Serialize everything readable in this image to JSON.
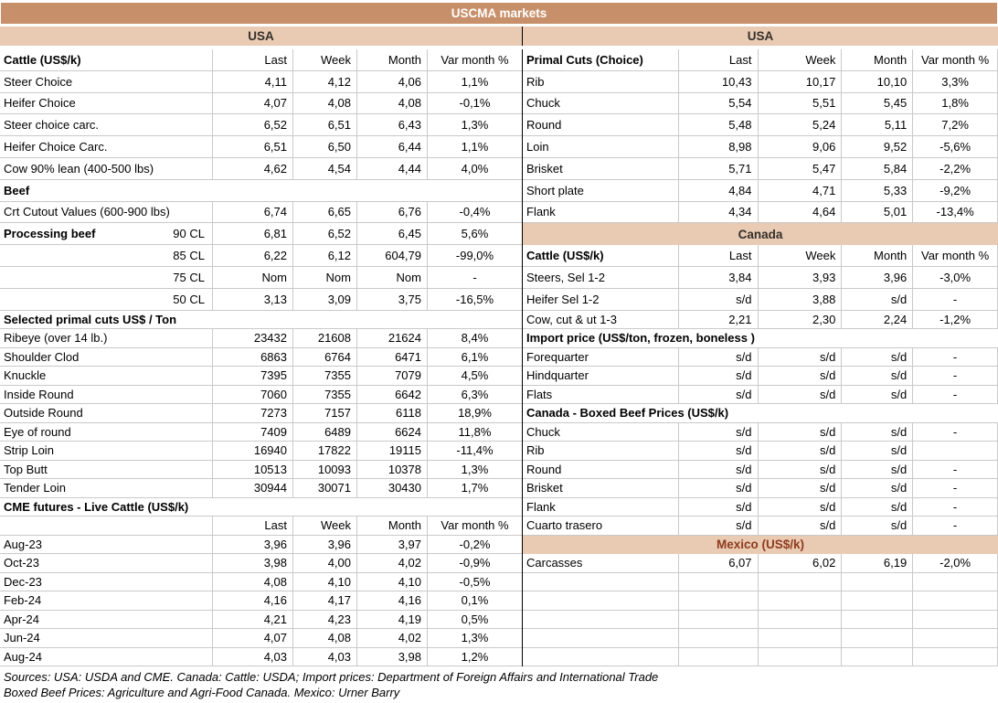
{
  "title": "USCMA markets",
  "left_region": "USA",
  "right_region": "USA",
  "column_headers": [
    "Last",
    "Week",
    "Month",
    "Var month %"
  ],
  "colors": {
    "title_bg": "#c8906a",
    "title_text": "#ffffff",
    "band_bg": "#e9cab3",
    "band_text": "#33302b",
    "mexico_band_text": "#8e3b1e",
    "grid": "#c9c9c9",
    "divider": "#000000",
    "text": "#000000"
  },
  "rows": [
    {
      "tall": true,
      "left": {
        "type": "header",
        "label": "Cattle (US$/k)"
      },
      "right": {
        "type": "header",
        "label": "Primal Cuts (Choice)"
      }
    },
    {
      "tall": true,
      "left": {
        "type": "data",
        "label": "Steer Choice",
        "values": [
          "4,11",
          "4,12",
          "4,06",
          "1,1%"
        ]
      },
      "right": {
        "type": "data",
        "label": "Rib",
        "values": [
          "10,43",
          "10,17",
          "10,10",
          "3,3%"
        ]
      }
    },
    {
      "tall": true,
      "left": {
        "type": "data",
        "label": "Heifer Choice",
        "values": [
          "4,07",
          "4,08",
          "4,08",
          "-0,1%"
        ]
      },
      "right": {
        "type": "data",
        "label": "Chuck",
        "values": [
          "5,54",
          "5,51",
          "5,45",
          "1,8%"
        ]
      }
    },
    {
      "tall": true,
      "left": {
        "type": "data",
        "label": "Steer choice carc.",
        "values": [
          "6,52",
          "6,51",
          "6,43",
          "1,3%"
        ]
      },
      "right": {
        "type": "data",
        "label": "Round",
        "values": [
          "5,48",
          "5,24",
          "5,11",
          "7,2%"
        ]
      }
    },
    {
      "tall": true,
      "left": {
        "type": "data",
        "label": "Heifer Choice Carc.",
        "values": [
          "6,51",
          "6,50",
          "6,44",
          "1,1%"
        ]
      },
      "right": {
        "type": "data",
        "label": "Loin",
        "values": [
          "8,98",
          "9,06",
          "9,52",
          "-5,6%"
        ]
      }
    },
    {
      "tall": true,
      "left": {
        "type": "data",
        "label": "Cow 90% lean (400-500 lbs)",
        "values": [
          "4,62",
          "4,54",
          "4,44",
          "4,0%"
        ]
      },
      "right": {
        "type": "data",
        "label": "Brisket",
        "values": [
          "5,71",
          "5,47",
          "5,84",
          "-2,2%"
        ]
      }
    },
    {
      "tall": true,
      "left": {
        "type": "section",
        "label": "Beef"
      },
      "right": {
        "type": "data",
        "label": "Short plate",
        "values": [
          "4,84",
          "4,71",
          "5,33",
          "-9,2%"
        ]
      }
    },
    {
      "tall": true,
      "left": {
        "type": "data",
        "label": "Crt Cutout Values (600-900 lbs)",
        "values": [
          "6,74",
          "6,65",
          "6,76",
          "-0,4%"
        ]
      },
      "right": {
        "type": "data",
        "label": "Flank",
        "values": [
          "4,34",
          "4,64",
          "5,01",
          "-13,4%"
        ]
      }
    },
    {
      "tall": true,
      "left": {
        "type": "data",
        "label": "Processing beef",
        "label_bold": true,
        "sub": "90 CL",
        "values": [
          "6,81",
          "6,52",
          "6,45",
          "5,6%"
        ]
      },
      "right": {
        "type": "band",
        "label": "Canada"
      }
    },
    {
      "tall": true,
      "left": {
        "type": "data",
        "label": "",
        "sub": "85 CL",
        "values": [
          "6,22",
          "6,12",
          "604,79",
          "-99,0%"
        ]
      },
      "right": {
        "type": "header",
        "label": "Cattle (US$/k)"
      }
    },
    {
      "tall": true,
      "left": {
        "type": "data",
        "label": "",
        "sub": "75 CL",
        "values": [
          "Nom",
          "Nom",
          "Nom",
          "-"
        ]
      },
      "right": {
        "type": "data",
        "label": "Steers, Sel 1-2",
        "values": [
          "3,84",
          "3,93",
          "3,96",
          "-3,0%"
        ]
      }
    },
    {
      "tall": true,
      "left": {
        "type": "data",
        "label": "",
        "sub": "50 CL",
        "values": [
          "3,13",
          "3,09",
          "3,75",
          "-16,5%"
        ]
      },
      "right": {
        "type": "data",
        "label": "Heifer Sel 1-2",
        "values": [
          "s/d",
          "3,88",
          "s/d",
          "-"
        ]
      }
    },
    {
      "tall": false,
      "left": {
        "type": "section",
        "label": "Selected primal cuts US$ / Ton"
      },
      "right": {
        "type": "data",
        "label": "Cow, cut & ut 1-3",
        "values": [
          "2,21",
          "2,30",
          "2,24",
          "-1,2%"
        ]
      }
    },
    {
      "tall": false,
      "left": {
        "type": "data",
        "label": "Ribeye (over 14 lb.)",
        "values": [
          "23432",
          "21608",
          "21624",
          "8,4%"
        ]
      },
      "right": {
        "type": "section",
        "label": "Import price (US$/ton, frozen, boneless )"
      }
    },
    {
      "tall": false,
      "left": {
        "type": "data",
        "label": "Shoulder Clod",
        "values": [
          "6863",
          "6764",
          "6471",
          "6,1%"
        ]
      },
      "right": {
        "type": "data",
        "label": "Forequarter",
        "values": [
          "s/d",
          "s/d",
          "s/d",
          "-"
        ]
      }
    },
    {
      "tall": false,
      "left": {
        "type": "data",
        "label": "Knuckle",
        "values": [
          "7395",
          "7355",
          "7079",
          "4,5%"
        ]
      },
      "right": {
        "type": "data",
        "label": "Hindquarter",
        "values": [
          "s/d",
          "s/d",
          "s/d",
          "-"
        ]
      }
    },
    {
      "tall": false,
      "left": {
        "type": "data",
        "label": "Inside Round",
        "values": [
          "7060",
          "7355",
          "6642",
          "6,3%"
        ]
      },
      "right": {
        "type": "data",
        "label": "Flats",
        "values": [
          "s/d",
          "s/d",
          "s/d",
          "-"
        ]
      }
    },
    {
      "tall": false,
      "left": {
        "type": "data",
        "label": "Outside Round",
        "values": [
          "7273",
          "7157",
          "6118",
          "18,9%"
        ]
      },
      "right": {
        "type": "section",
        "label": "Canada - Boxed Beef Prices (US$/k)"
      }
    },
    {
      "tall": false,
      "left": {
        "type": "data",
        "label": "Eye of round",
        "values": [
          "7409",
          "6489",
          "6624",
          "11,8%"
        ]
      },
      "right": {
        "type": "data",
        "label": "Chuck",
        "values": [
          "s/d",
          "s/d",
          "s/d",
          "-"
        ]
      }
    },
    {
      "tall": false,
      "left": {
        "type": "data",
        "label": "Strip Loin",
        "values": [
          "16940",
          "17822",
          "19115",
          "-11,4%"
        ]
      },
      "right": {
        "type": "data",
        "label": "Rib",
        "values": [
          "s/d",
          "s/d",
          "s/d",
          ""
        ]
      }
    },
    {
      "tall": false,
      "left": {
        "type": "data",
        "label": "Top Butt",
        "values": [
          "10513",
          "10093",
          "10378",
          "1,3%"
        ]
      },
      "right": {
        "type": "data",
        "label": "Round",
        "values": [
          "s/d",
          "s/d",
          "s/d",
          "-"
        ]
      }
    },
    {
      "tall": false,
      "left": {
        "type": "data",
        "label": "Tender Loin",
        "values": [
          "30944",
          "30071",
          "30430",
          "1,7%"
        ]
      },
      "right": {
        "type": "data",
        "label": "Brisket",
        "values": [
          "s/d",
          "s/d",
          "s/d",
          "-"
        ]
      }
    },
    {
      "tall": false,
      "left": {
        "type": "section",
        "label": "CME futures - Live Cattle (US$/k)"
      },
      "right": {
        "type": "data",
        "label": "Flank",
        "values": [
          "s/d",
          "s/d",
          "s/d",
          "-"
        ]
      }
    },
    {
      "tall": false,
      "left": {
        "type": "subheader",
        "label": ""
      },
      "right": {
        "type": "data",
        "label": "Cuarto trasero",
        "values": [
          "s/d",
          "s/d",
          "s/d",
          "-"
        ]
      }
    },
    {
      "tall": false,
      "left": {
        "type": "data",
        "label": "Aug-23",
        "values": [
          "3,96",
          "3,96",
          "3,97",
          "-0,2%"
        ]
      },
      "right": {
        "type": "band",
        "label": "Mexico (US$/k)",
        "variant": "mexico"
      }
    },
    {
      "tall": false,
      "left": {
        "type": "data",
        "label": "Oct-23",
        "values": [
          "3,98",
          "4,00",
          "4,02",
          "-0,9%"
        ]
      },
      "right": {
        "type": "data",
        "label": "Carcasses",
        "values": [
          "6,07",
          "6,02",
          "6,19",
          "-2,0%"
        ]
      }
    },
    {
      "tall": false,
      "left": {
        "type": "data",
        "label": "Dec-23",
        "values": [
          "4,08",
          "4,10",
          "4,10",
          "-0,5%"
        ]
      },
      "right": {
        "type": "blank"
      }
    },
    {
      "tall": false,
      "left": {
        "type": "data",
        "label": "Feb-24",
        "values": [
          "4,16",
          "4,17",
          "4,16",
          "0,1%"
        ]
      },
      "right": {
        "type": "blank"
      }
    },
    {
      "tall": false,
      "left": {
        "type": "data",
        "label": "Apr-24",
        "values": [
          "4,21",
          "4,23",
          "4,19",
          "0,5%"
        ]
      },
      "right": {
        "type": "blank"
      }
    },
    {
      "tall": false,
      "left": {
        "type": "data",
        "label": "Jun-24",
        "values": [
          "4,07",
          "4,08",
          "4,02",
          "1,3%"
        ]
      },
      "right": {
        "type": "blank"
      }
    },
    {
      "tall": false,
      "left": {
        "type": "data",
        "label": "Aug-24",
        "values": [
          "4,03",
          "4,03",
          "3,98",
          "1,2%"
        ]
      },
      "right": {
        "type": "blank"
      }
    }
  ],
  "footer_lines": [
    "Sources: USA: USDA and CME. Canada: Cattle: USDA; Import prices: Department of Foreign Affairs and International Trade",
    "Boxed Beef Prices: Agriculture and Agri-Food Canada. Mexico: Urner Barry"
  ]
}
